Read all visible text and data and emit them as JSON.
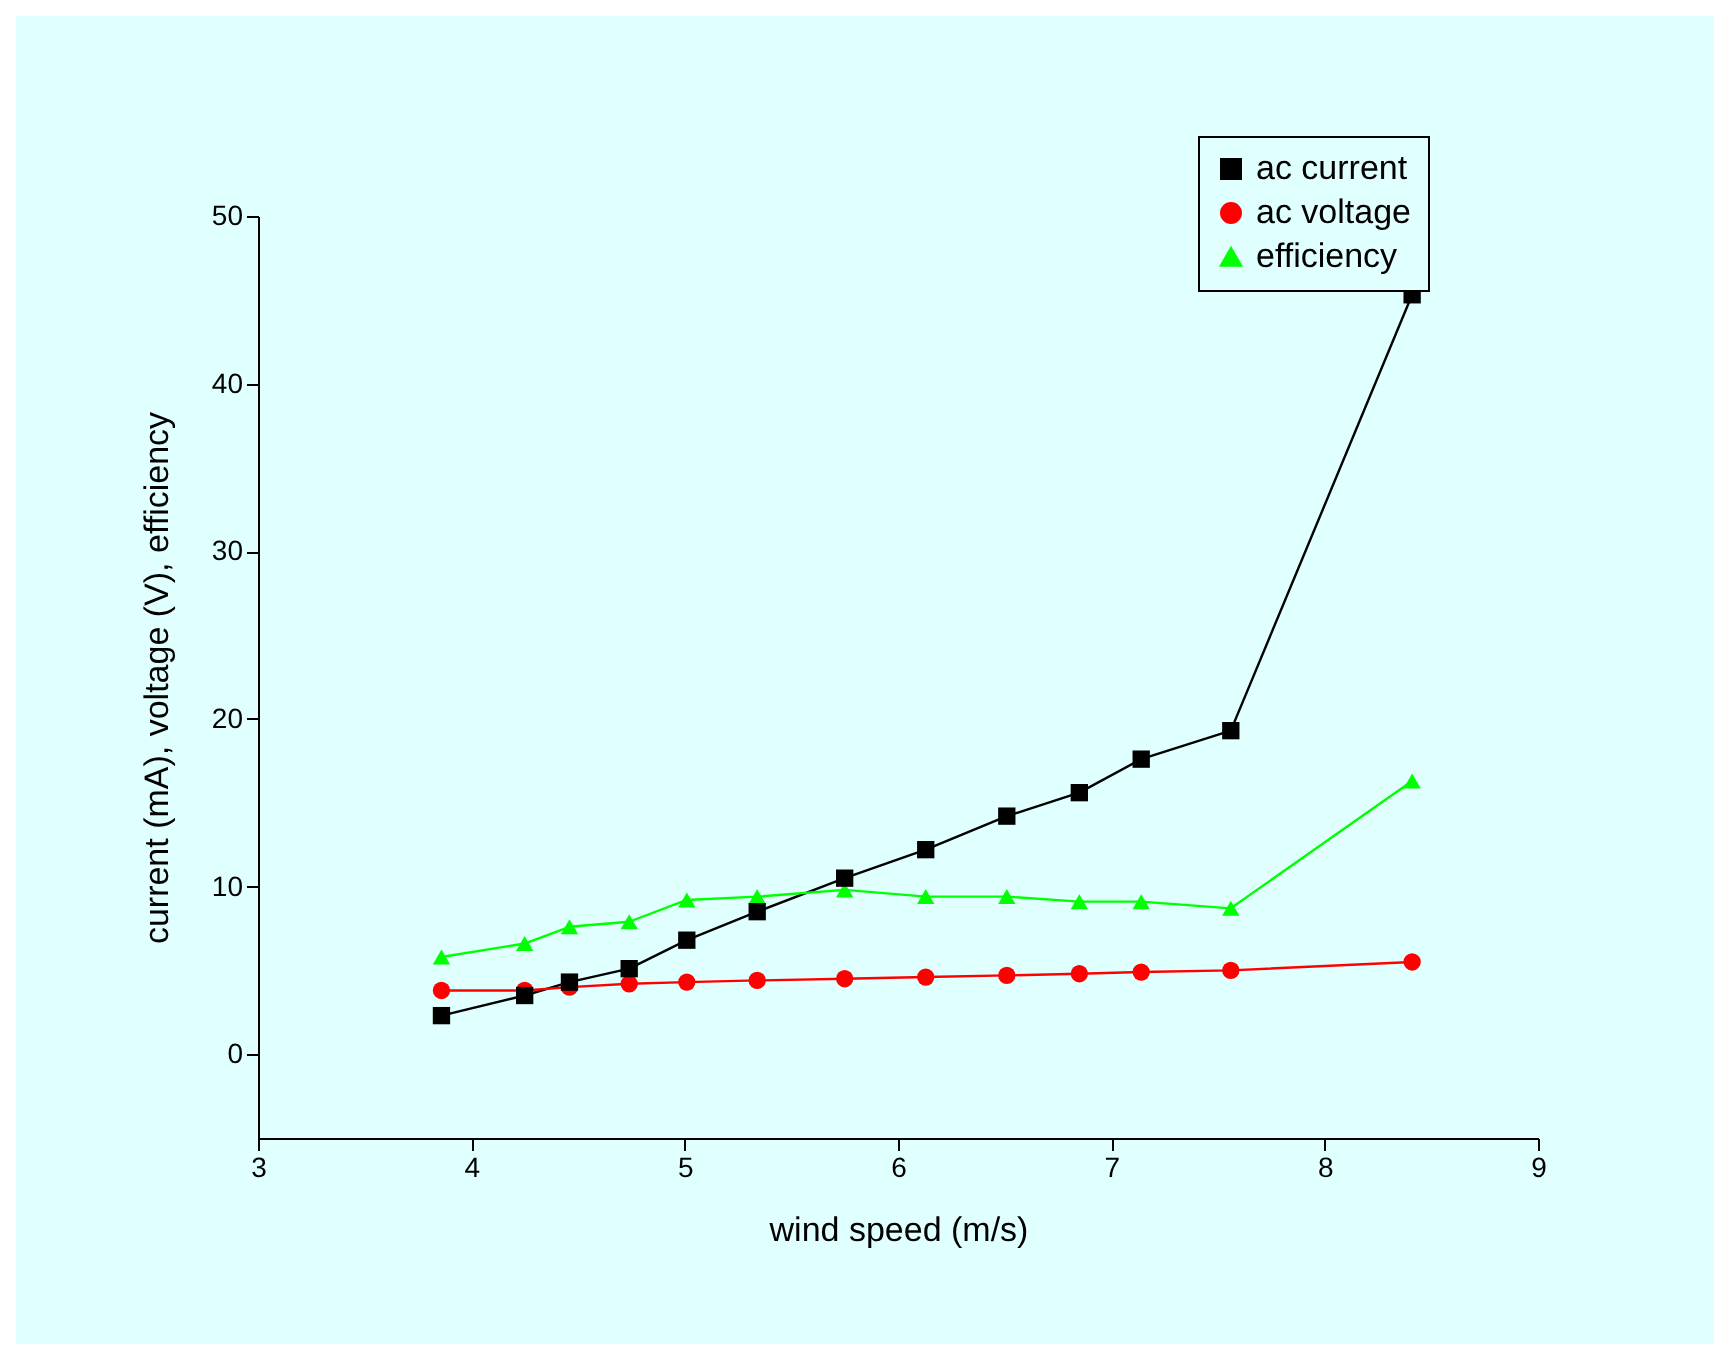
{
  "chart_data": {
    "type": "line",
    "xlabel": "wind speed (m/s)",
    "ylabel": "current (mA), voltage (V), efficiency",
    "x": [
      3.86,
      4.25,
      4.46,
      4.74,
      5.01,
      5.34,
      5.75,
      6.13,
      6.51,
      6.85,
      7.14,
      7.56,
      8.41
    ],
    "series": [
      {
        "name": "ac current",
        "color": "#000000",
        "marker": "square",
        "values": [
          2.3,
          3.5,
          4.3,
          5.1,
          6.8,
          8.5,
          10.5,
          12.2,
          14.2,
          15.6,
          17.6,
          19.3,
          45.3
        ]
      },
      {
        "name": "ac voltage",
        "color": "#ff0000",
        "marker": "circle",
        "values": [
          3.8,
          3.8,
          4.0,
          4.2,
          4.3,
          4.4,
          4.5,
          4.6,
          4.7,
          4.8,
          4.9,
          5.0,
          5.5
        ]
      },
      {
        "name": "efficiency",
        "color": "#00ff00",
        "marker": "triangle",
        "values": [
          5.8,
          6.6,
          7.6,
          7.9,
          9.2,
          9.4,
          9.8,
          9.4,
          9.4,
          9.1,
          9.1,
          8.7,
          16.3
        ]
      }
    ],
    "xlim": [
      3,
      9
    ],
    "xticks": [
      3,
      4,
      5,
      6,
      7,
      8,
      9
    ],
    "ylim": [
      -5,
      50
    ],
    "yticks": [
      0,
      10,
      20,
      30,
      40,
      50
    ],
    "legend": "top right",
    "grid": false,
    "line_style": "solid"
  }
}
